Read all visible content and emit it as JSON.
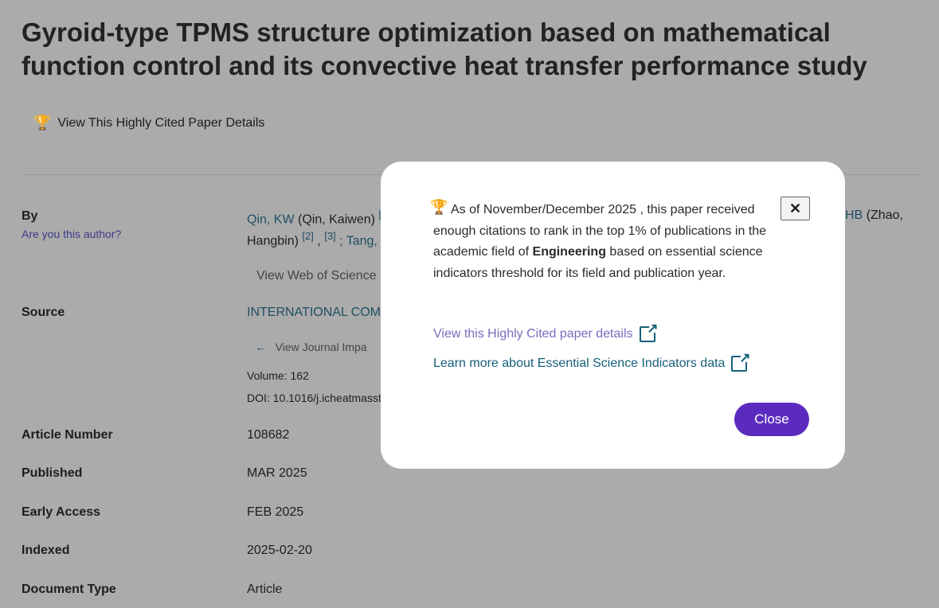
{
  "title": "Gyroid-type TPMS structure optimization based on mathematical function control and its convective heat transfer performance study",
  "highly_cited_link": "View This Highly Cited Paper Details",
  "by": {
    "label": "By",
    "are_you": "Are you this author?",
    "author1": "Qin, KW",
    "author1_full": "(Qin, Kaiwen)",
    "author1_sup": "[",
    "line2_start": "Hangbin)",
    "sup2": "[2]",
    "sup3": "[3]",
    "tang": "; Tang,",
    "zhao_abbr": "HB",
    "zhao_full": "(Zhao,",
    "view_wos": "View Web of Science"
  },
  "source": {
    "label": "Source",
    "journal": "INTERNATIONAL COMM",
    "jif": "View Journal Impa",
    "volume": "Volume: 162",
    "doi": "DOI: 10.1016/j.icheatmasst"
  },
  "fields": [
    {
      "label": "Article Number",
      "value": "108682"
    },
    {
      "label": "Published",
      "value": "MAR 2025"
    },
    {
      "label": "Early Access",
      "value": "FEB 2025"
    },
    {
      "label": "Indexed",
      "value": "2025-02-20"
    },
    {
      "label": "Document Type",
      "value": "Article"
    }
  ],
  "modal": {
    "text_pre": "As of November/December 2025 , this paper received enough citations to rank in the top 1% of publications in the academic field of ",
    "field": "Engineering",
    "text_post": " based on essential science indicators threshold for its field and publication year.",
    "link1": "View this Highly Cited paper details",
    "link2": "Learn more about Essential Science Indicators data",
    "close_x": "✕",
    "close": "Close"
  },
  "colors": {
    "accent": "#5b2bc0",
    "trophy": "#b43a10",
    "link": "#16607a",
    "visited": "#7c6bbd"
  }
}
